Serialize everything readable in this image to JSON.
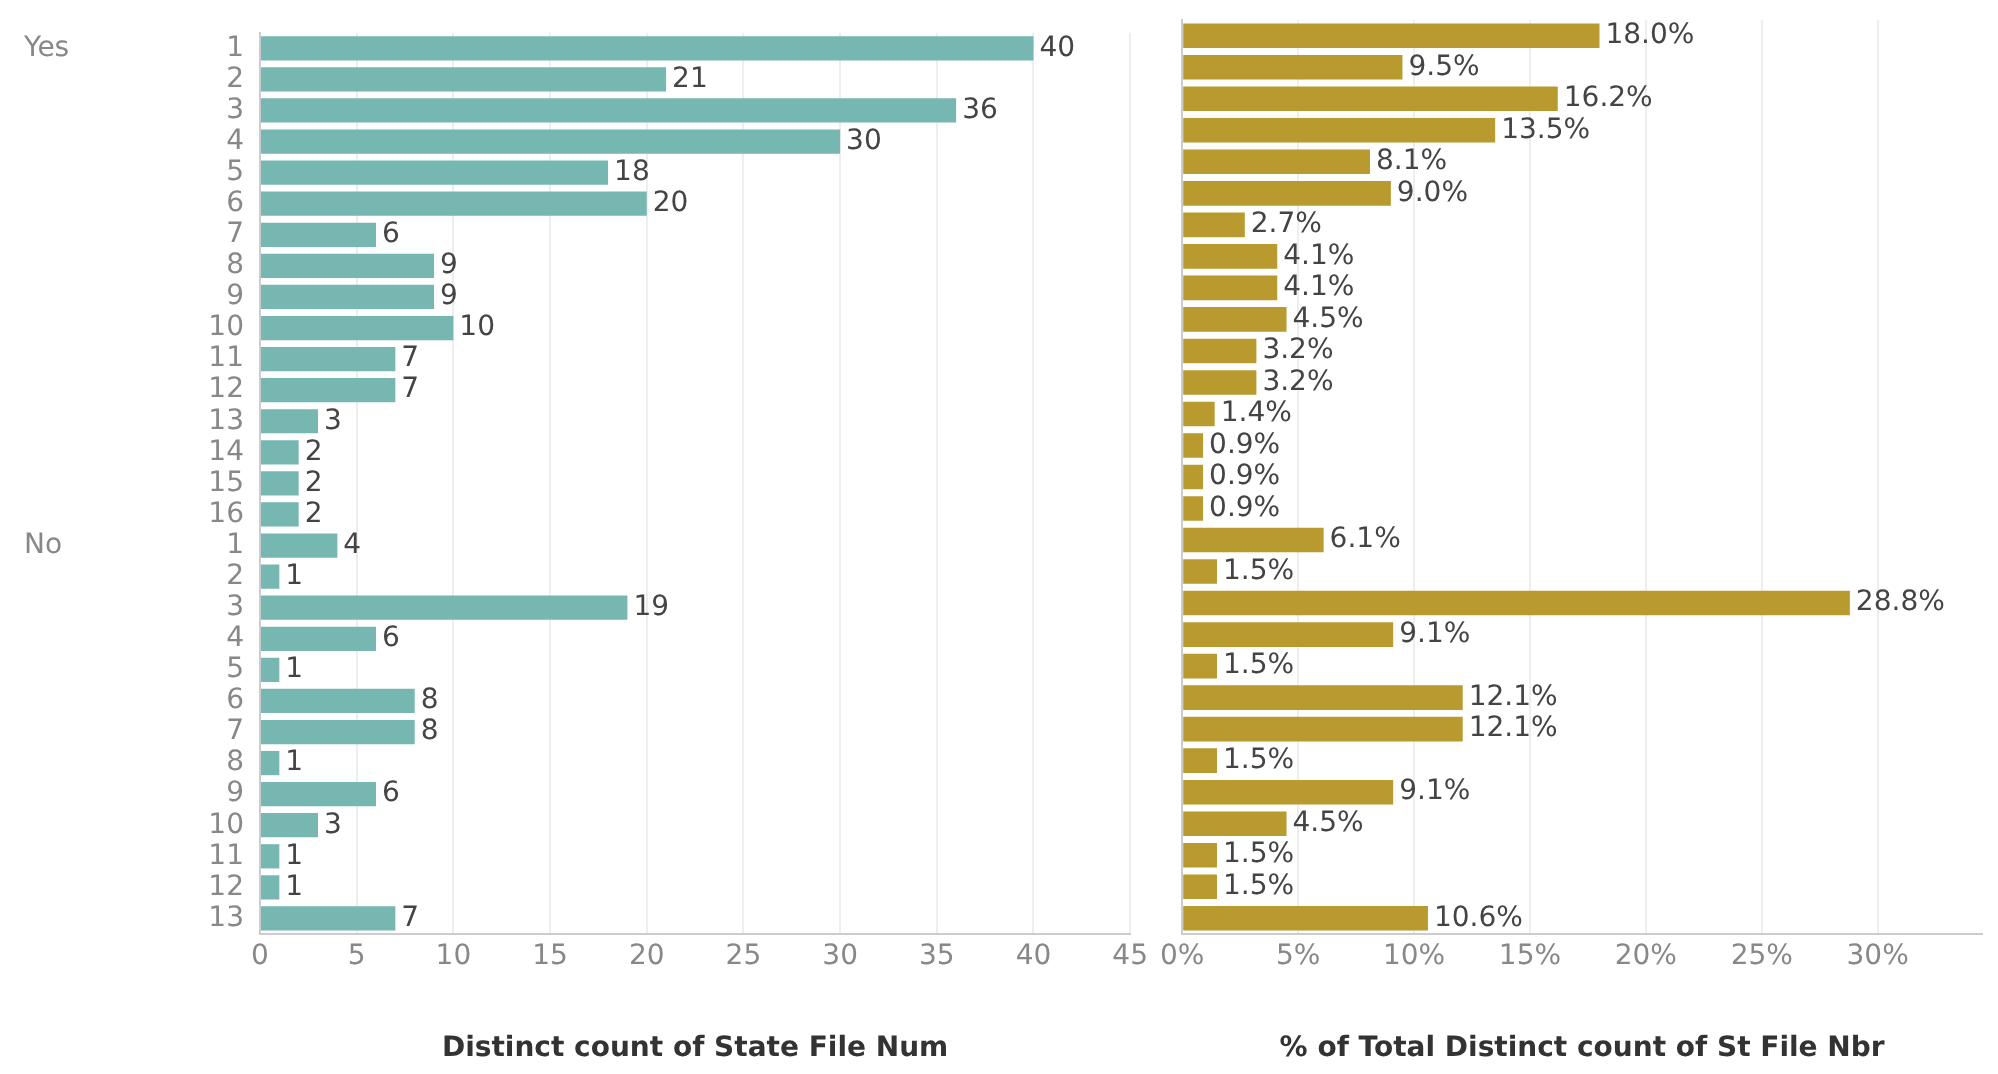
{
  "chart_data": [
    {
      "type": "bar",
      "orientation": "horizontal",
      "xlabel": "Distinct count of State File Num",
      "categories": [
        "1",
        "2",
        "3",
        "4",
        "5",
        "6",
        "7",
        "8",
        "9",
        "10",
        "11",
        "12",
        "13",
        "14",
        "15",
        "16",
        "1",
        "2",
        "3",
        "4",
        "5",
        "6",
        "7",
        "8",
        "9",
        "10",
        "11",
        "12",
        "13"
      ],
      "values": [
        40,
        21,
        36,
        30,
        18,
        20,
        6,
        9,
        9,
        10,
        7,
        7,
        3,
        2,
        2,
        2,
        4,
        1,
        19,
        6,
        1,
        8,
        8,
        1,
        6,
        3,
        1,
        1,
        7
      ],
      "color": "#76b7b2",
      "xlim": [
        0,
        45
      ],
      "xticks": [
        0,
        5,
        10,
        15,
        20,
        25,
        30,
        35,
        40,
        45
      ],
      "grid": "x",
      "data_labels": true,
      "annotations": [
        "Yes",
        "No"
      ]
    },
    {
      "type": "bar",
      "orientation": "horizontal",
      "xlabel": "% of Total Distinct count of St File Nbr",
      "categories": [
        "1",
        "2",
        "3",
        "4",
        "5",
        "6",
        "7",
        "8",
        "9",
        "10",
        "11",
        "12",
        "13",
        "14",
        "15",
        "16",
        "1",
        "2",
        "3",
        "4",
        "5",
        "6",
        "7",
        "8",
        "9",
        "10",
        "11",
        "12",
        "13"
      ],
      "values": [
        18.0,
        9.5,
        16.2,
        13.5,
        8.1,
        9.0,
        2.7,
        4.1,
        4.1,
        4.5,
        3.2,
        3.2,
        1.4,
        0.9,
        0.9,
        0.9,
        6.1,
        1.5,
        28.8,
        9.1,
        1.5,
        12.1,
        12.1,
        1.5,
        9.1,
        4.5,
        1.5,
        1.5,
        10.6
      ],
      "value_labels": [
        "18.0%",
        "9.5%",
        "16.2%",
        "13.5%",
        "8.1%",
        "9.0%",
        "2.7%",
        "4.1%",
        "4.1%",
        "4.5%",
        "3.2%",
        "3.2%",
        "1.4%",
        "0.9%",
        "0.9%",
        "0.9%",
        "6.1%",
        "1.5%",
        "28.8%",
        "9.1%",
        "1.5%",
        "12.1%",
        "12.1%",
        "1.5%",
        "9.1%",
        "4.5%",
        "1.5%",
        "1.5%",
        "10.6%"
      ],
      "color": "#b89a2f",
      "xlim": [
        0,
        34.5
      ],
      "xticks": [
        {
          "value": 0,
          "label": "0%"
        },
        {
          "value": 5,
          "label": "5%"
        },
        {
          "value": 10,
          "label": "10%"
        },
        {
          "value": 15,
          "label": "15%"
        },
        {
          "value": 20,
          "label": "20%"
        },
        {
          "value": 25,
          "label": "25%"
        },
        {
          "value": 30,
          "label": "30%"
        }
      ],
      "grid": "x",
      "tick_labels": "x"
    }
  ]
}
